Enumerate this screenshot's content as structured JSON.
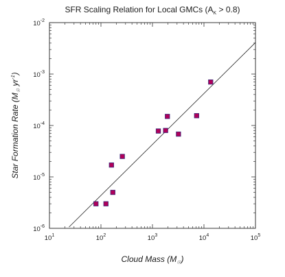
{
  "chart_data": {
    "type": "scatter",
    "title": "SFR Scaling Relation for Local GMCs (A",
    "title_sub": "K",
    "title_tail": " > 0.8)",
    "xlabel": "Cloud Mass (M",
    "xlabel_sub": "☉",
    "xlabel_tail": ")",
    "ylabel": "Star Formation Rate (M",
    "ylabel_sub": "☉",
    "ylabel_mid": " yr",
    "ylabel_sup": "-1",
    "ylabel_tail": ")",
    "x_scale": "log",
    "y_scale": "log",
    "xlim": [
      10,
      100000
    ],
    "ylim": [
      1e-06,
      0.01
    ],
    "x_ticks": [
      {
        "value": 10,
        "base": "10",
        "exp": "1"
      },
      {
        "value": 100,
        "base": "10",
        "exp": "2"
      },
      {
        "value": 1000,
        "base": "10",
        "exp": "3"
      },
      {
        "value": 10000,
        "base": "10",
        "exp": "4"
      },
      {
        "value": 100000,
        "base": "10",
        "exp": "5"
      }
    ],
    "y_ticks": [
      {
        "value": 1e-06,
        "base": "10",
        "exp": "-6"
      },
      {
        "value": 1e-05,
        "base": "10",
        "exp": "-5"
      },
      {
        "value": 0.0001,
        "base": "10",
        "exp": "-4"
      },
      {
        "value": 0.001,
        "base": "10",
        "exp": "-3"
      },
      {
        "value": 0.01,
        "base": "10",
        "exp": "-2"
      }
    ],
    "grid": false,
    "points": [
      {
        "x": 80,
        "y": 3e-06
      },
      {
        "x": 125,
        "y": 3e-06
      },
      {
        "x": 170,
        "y": 5e-06
      },
      {
        "x": 160,
        "y": 1.7e-05
      },
      {
        "x": 260,
        "y": 2.5e-05
      },
      {
        "x": 1300,
        "y": 7.8e-05
      },
      {
        "x": 1800,
        "y": 8e-05
      },
      {
        "x": 1950,
        "y": 0.00015
      },
      {
        "x": 3200,
        "y": 6.8e-05
      },
      {
        "x": 7200,
        "y": 0.000155
      },
      {
        "x": 13500,
        "y": 0.0007
      }
    ],
    "fit_line": {
      "x": [
        24,
        100000
      ],
      "y": [
        1.06e-06,
        0.0041
      ]
    },
    "marker_fill": "#b0005a",
    "marker_stroke": "#3a2a7a",
    "line_color": "#222222",
    "frame_color": "#333333"
  }
}
